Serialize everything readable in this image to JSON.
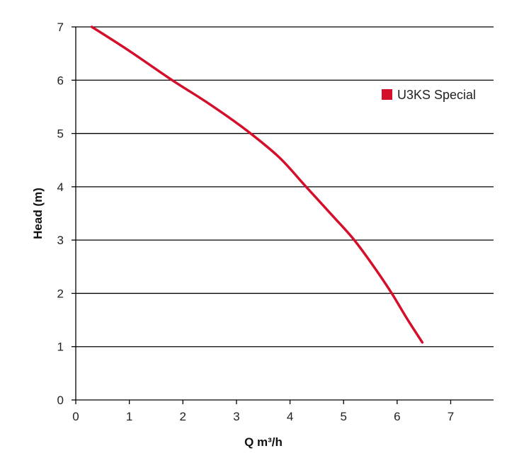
{
  "chart_data": {
    "type": "line",
    "title": "",
    "xlabel": "Q m³/h",
    "ylabel": "Head (m)",
    "xlim": [
      0,
      7.8
    ],
    "ylim": [
      0,
      7
    ],
    "x_ticks": [
      "0",
      "1",
      "2",
      "3",
      "4",
      "5",
      "6",
      "7"
    ],
    "y_ticks": [
      "0",
      "1",
      "2",
      "3",
      "4",
      "5",
      "6",
      "7"
    ],
    "grid": "horizontal",
    "legend_position": "top-right",
    "series": [
      {
        "name": "U3KS Special",
        "color": "#d40f2b",
        "x": [
          0.3,
          1.0,
          1.8,
          2.5,
          3.2,
          3.8,
          4.3,
          4.8,
          5.2,
          5.6,
          5.9,
          6.2,
          6.47
        ],
        "y": [
          7.0,
          6.55,
          6.0,
          5.55,
          5.05,
          4.55,
          4.0,
          3.45,
          3.0,
          2.45,
          2.0,
          1.5,
          1.08
        ]
      }
    ]
  }
}
